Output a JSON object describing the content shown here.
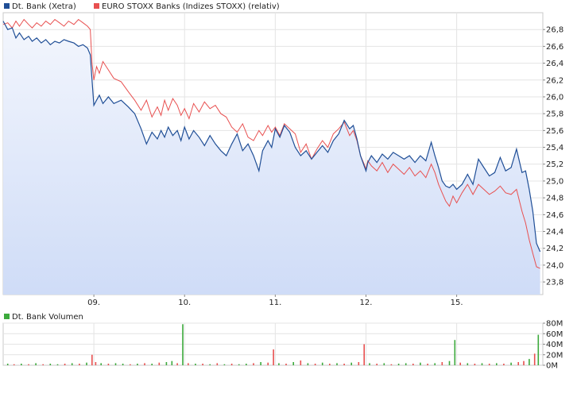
{
  "chart_data": [
    {
      "type": "line",
      "legend": [
        {
          "name": "Dt. Bank (Xetra)",
          "color": "#1f4e96"
        },
        {
          "name": "EURO STOXX Banks (Indizes STOXX) (relativ)",
          "color": "#e85050"
        }
      ],
      "x_tick_labels": [
        "09.",
        "10.",
        "11.",
        "12.",
        "15."
      ],
      "y_tick_labels": [
        "23,8",
        "24,0",
        "24,2",
        "24,4",
        "24,6",
        "24,8",
        "25,0",
        "25,2",
        "25,4",
        "25,6",
        "25,8",
        "26,0",
        "26,2",
        "26,4",
        "26,6",
        "26,8"
      ],
      "ylim": [
        23.65,
        27.0
      ],
      "xlim": [
        0,
        5.95
      ],
      "grid": true,
      "series": [
        {
          "name": "Dt. Bank (Xetra)",
          "color": "#1f4e96",
          "fill": "#dde7fa",
          "x": [
            0.0,
            0.05,
            0.1,
            0.14,
            0.18,
            0.23,
            0.28,
            0.32,
            0.37,
            0.42,
            0.47,
            0.52,
            0.57,
            0.62,
            0.67,
            0.72,
            0.78,
            0.83,
            0.88,
            0.93,
            0.96,
            0.98,
            1.0,
            1.03,
            1.06,
            1.1,
            1.16,
            1.22,
            1.3,
            1.38,
            1.45,
            1.52,
            1.58,
            1.64,
            1.7,
            1.74,
            1.78,
            1.82,
            1.87,
            1.92,
            1.96,
            2.0,
            2.05,
            2.1,
            2.16,
            2.22,
            2.28,
            2.34,
            2.4,
            2.46,
            2.52,
            2.58,
            2.64,
            2.7,
            2.76,
            2.82,
            2.86,
            2.92,
            2.96,
            3.0,
            3.05,
            3.1,
            3.16,
            3.22,
            3.28,
            3.34,
            3.4,
            3.46,
            3.52,
            3.58,
            3.64,
            3.7,
            3.76,
            3.82,
            3.86,
            3.9,
            3.94,
            3.98,
            4.0,
            4.02,
            4.06,
            4.12,
            4.18,
            4.24,
            4.3,
            4.36,
            4.42,
            4.48,
            4.54,
            4.6,
            4.66,
            4.72,
            4.76,
            4.8,
            4.84,
            4.88,
            4.92,
            4.96,
            5.0,
            5.06,
            5.12,
            5.18,
            5.24,
            5.3,
            5.36,
            5.42,
            5.48,
            5.54,
            5.6,
            5.66,
            5.72,
            5.76,
            5.8,
            5.84,
            5.88,
            5.92
          ],
          "y": [
            26.9,
            26.8,
            26.82,
            26.7,
            26.76,
            26.68,
            26.72,
            26.66,
            26.7,
            26.64,
            26.68,
            26.62,
            26.66,
            26.64,
            26.68,
            26.66,
            26.64,
            26.6,
            26.62,
            26.58,
            26.5,
            26.2,
            25.9,
            25.96,
            26.02,
            25.92,
            26.0,
            25.92,
            25.96,
            25.88,
            25.8,
            25.62,
            25.44,
            25.58,
            25.5,
            25.6,
            25.52,
            25.64,
            25.54,
            25.6,
            25.48,
            25.64,
            25.5,
            25.6,
            25.52,
            25.42,
            25.54,
            25.44,
            25.36,
            25.3,
            25.44,
            25.56,
            25.36,
            25.44,
            25.3,
            25.12,
            25.36,
            25.48,
            25.4,
            25.62,
            25.52,
            25.66,
            25.58,
            25.4,
            25.3,
            25.36,
            25.26,
            25.34,
            25.42,
            25.34,
            25.48,
            25.56,
            25.72,
            25.62,
            25.66,
            25.5,
            25.3,
            25.18,
            25.12,
            25.22,
            25.3,
            25.22,
            25.32,
            25.26,
            25.34,
            25.3,
            25.26,
            25.3,
            25.22,
            25.3,
            25.24,
            25.46,
            25.3,
            25.16,
            25.0,
            24.94,
            24.92,
            24.96,
            24.9,
            24.96,
            25.08,
            24.96,
            25.26,
            25.16,
            25.06,
            25.1,
            25.28,
            25.12,
            25.16,
            25.38,
            25.1,
            25.12,
            24.9,
            24.64,
            24.26,
            24.16
          ]
        },
        {
          "name": "EURO STOXX Banks (Indizes STOXX) (relativ)",
          "color": "#e85050",
          "x": [
            0.0,
            0.05,
            0.1,
            0.14,
            0.18,
            0.23,
            0.28,
            0.32,
            0.37,
            0.42,
            0.47,
            0.52,
            0.57,
            0.62,
            0.67,
            0.72,
            0.78,
            0.83,
            0.88,
            0.93,
            0.96,
            0.98,
            1.0,
            1.03,
            1.06,
            1.1,
            1.16,
            1.22,
            1.3,
            1.38,
            1.45,
            1.52,
            1.58,
            1.64,
            1.7,
            1.74,
            1.78,
            1.82,
            1.87,
            1.92,
            1.96,
            2.0,
            2.05,
            2.1,
            2.16,
            2.22,
            2.28,
            2.34,
            2.4,
            2.46,
            2.52,
            2.58,
            2.64,
            2.7,
            2.76,
            2.82,
            2.86,
            2.92,
            2.96,
            3.0,
            3.05,
            3.1,
            3.16,
            3.22,
            3.28,
            3.34,
            3.4,
            3.46,
            3.52,
            3.58,
            3.64,
            3.7,
            3.76,
            3.82,
            3.86,
            3.9,
            3.94,
            3.98,
            4.0,
            4.02,
            4.06,
            4.12,
            4.18,
            4.24,
            4.3,
            4.36,
            4.42,
            4.48,
            4.54,
            4.6,
            4.66,
            4.72,
            4.76,
            4.8,
            4.84,
            4.88,
            4.92,
            4.96,
            5.0,
            5.06,
            5.12,
            5.18,
            5.24,
            5.3,
            5.36,
            5.42,
            5.48,
            5.54,
            5.6,
            5.66,
            5.72,
            5.76,
            5.8,
            5.84,
            5.88,
            5.92
          ],
          "y": [
            26.86,
            26.88,
            26.82,
            26.9,
            26.84,
            26.92,
            26.86,
            26.82,
            26.88,
            26.84,
            26.9,
            26.86,
            26.92,
            26.88,
            26.84,
            26.9,
            26.86,
            26.92,
            26.88,
            26.84,
            26.8,
            26.4,
            26.2,
            26.36,
            26.28,
            26.42,
            26.32,
            26.22,
            26.18,
            26.06,
            25.96,
            25.84,
            25.96,
            25.76,
            25.88,
            25.78,
            25.96,
            25.84,
            25.98,
            25.9,
            25.78,
            25.86,
            25.74,
            25.92,
            25.82,
            25.94,
            25.86,
            25.9,
            25.8,
            25.76,
            25.64,
            25.58,
            25.68,
            25.52,
            25.48,
            25.6,
            25.54,
            25.66,
            25.58,
            25.64,
            25.54,
            25.68,
            25.62,
            25.56,
            25.34,
            25.44,
            25.26,
            25.38,
            25.48,
            25.4,
            25.56,
            25.62,
            25.7,
            25.54,
            25.6,
            25.48,
            25.3,
            25.2,
            25.14,
            25.24,
            25.18,
            25.12,
            25.22,
            25.1,
            25.2,
            25.14,
            25.08,
            25.16,
            25.06,
            25.12,
            25.04,
            25.2,
            25.1,
            24.96,
            24.86,
            24.76,
            24.7,
            24.82,
            24.74,
            24.86,
            24.96,
            24.84,
            24.96,
            24.9,
            24.84,
            24.88,
            24.94,
            24.86,
            24.84,
            24.9,
            24.64,
            24.5,
            24.3,
            24.14,
            23.98,
            23.96
          ]
        }
      ]
    },
    {
      "type": "bar",
      "legend": [
        {
          "name": "Dt. Bank Volumen",
          "color": "#3caa3c"
        }
      ],
      "y_tick_labels": [
        "0M",
        "20M",
        "40M",
        "60M",
        "80M"
      ],
      "ylim": [
        0,
        80
      ],
      "bar_colors": {
        "up": "#3caa3c",
        "down": "#e85050"
      },
      "bars": [
        {
          "x": 0.05,
          "v": 3,
          "d": 0
        },
        {
          "x": 0.12,
          "v": 2,
          "d": 1
        },
        {
          "x": 0.2,
          "v": 3,
          "d": 0
        },
        {
          "x": 0.28,
          "v": 2,
          "d": 1
        },
        {
          "x": 0.36,
          "v": 4,
          "d": 0
        },
        {
          "x": 0.44,
          "v": 2,
          "d": 1
        },
        {
          "x": 0.52,
          "v": 3,
          "d": 0
        },
        {
          "x": 0.6,
          "v": 2,
          "d": 0
        },
        {
          "x": 0.68,
          "v": 3,
          "d": 1
        },
        {
          "x": 0.76,
          "v": 4,
          "d": 0
        },
        {
          "x": 0.84,
          "v": 3,
          "d": 1
        },
        {
          "x": 0.92,
          "v": 5,
          "d": 0
        },
        {
          "x": 0.98,
          "v": 20,
          "d": 1
        },
        {
          "x": 1.02,
          "v": 6,
          "d": 1
        },
        {
          "x": 1.08,
          "v": 4,
          "d": 0
        },
        {
          "x": 1.16,
          "v": 3,
          "d": 1
        },
        {
          "x": 1.24,
          "v": 4,
          "d": 0
        },
        {
          "x": 1.32,
          "v": 3,
          "d": 0
        },
        {
          "x": 1.4,
          "v": 2,
          "d": 1
        },
        {
          "x": 1.48,
          "v": 3,
          "d": 0
        },
        {
          "x": 1.56,
          "v": 4,
          "d": 1
        },
        {
          "x": 1.64,
          "v": 3,
          "d": 0
        },
        {
          "x": 1.72,
          "v": 5,
          "d": 1
        },
        {
          "x": 1.8,
          "v": 6,
          "d": 0
        },
        {
          "x": 1.86,
          "v": 8,
          "d": 0
        },
        {
          "x": 1.92,
          "v": 4,
          "d": 1
        },
        {
          "x": 1.98,
          "v": 78,
          "d": 0
        },
        {
          "x": 2.04,
          "v": 4,
          "d": 1
        },
        {
          "x": 2.12,
          "v": 3,
          "d": 0
        },
        {
          "x": 2.2,
          "v": 3,
          "d": 1
        },
        {
          "x": 2.28,
          "v": 2,
          "d": 0
        },
        {
          "x": 2.36,
          "v": 4,
          "d": 1
        },
        {
          "x": 2.44,
          "v": 2,
          "d": 0
        },
        {
          "x": 2.52,
          "v": 3,
          "d": 1
        },
        {
          "x": 2.6,
          "v": 2,
          "d": 0
        },
        {
          "x": 2.68,
          "v": 3,
          "d": 0
        },
        {
          "x": 2.76,
          "v": 4,
          "d": 1
        },
        {
          "x": 2.84,
          "v": 6,
          "d": 0
        },
        {
          "x": 2.92,
          "v": 5,
          "d": 1
        },
        {
          "x": 2.98,
          "v": 30,
          "d": 1
        },
        {
          "x": 3.04,
          "v": 4,
          "d": 0
        },
        {
          "x": 3.12,
          "v": 3,
          "d": 1
        },
        {
          "x": 3.2,
          "v": 6,
          "d": 0
        },
        {
          "x": 3.28,
          "v": 9,
          "d": 1
        },
        {
          "x": 3.36,
          "v": 4,
          "d": 0
        },
        {
          "x": 3.44,
          "v": 3,
          "d": 1
        },
        {
          "x": 3.52,
          "v": 5,
          "d": 0
        },
        {
          "x": 3.6,
          "v": 3,
          "d": 1
        },
        {
          "x": 3.68,
          "v": 4,
          "d": 0
        },
        {
          "x": 3.76,
          "v": 3,
          "d": 1
        },
        {
          "x": 3.84,
          "v": 5,
          "d": 0
        },
        {
          "x": 3.92,
          "v": 6,
          "d": 1
        },
        {
          "x": 3.98,
          "v": 40,
          "d": 1
        },
        {
          "x": 4.04,
          "v": 4,
          "d": 0
        },
        {
          "x": 4.12,
          "v": 3,
          "d": 1
        },
        {
          "x": 4.2,
          "v": 4,
          "d": 0
        },
        {
          "x": 4.28,
          "v": 2,
          "d": 1
        },
        {
          "x": 4.36,
          "v": 3,
          "d": 0
        },
        {
          "x": 4.44,
          "v": 4,
          "d": 0
        },
        {
          "x": 4.52,
          "v": 3,
          "d": 1
        },
        {
          "x": 4.6,
          "v": 5,
          "d": 0
        },
        {
          "x": 4.68,
          "v": 3,
          "d": 1
        },
        {
          "x": 4.76,
          "v": 4,
          "d": 0
        },
        {
          "x": 4.84,
          "v": 6,
          "d": 1
        },
        {
          "x": 4.92,
          "v": 8,
          "d": 0
        },
        {
          "x": 4.98,
          "v": 48,
          "d": 0
        },
        {
          "x": 5.04,
          "v": 5,
          "d": 1
        },
        {
          "x": 5.12,
          "v": 4,
          "d": 0
        },
        {
          "x": 5.2,
          "v": 3,
          "d": 1
        },
        {
          "x": 5.28,
          "v": 4,
          "d": 0
        },
        {
          "x": 5.36,
          "v": 3,
          "d": 1
        },
        {
          "x": 5.44,
          "v": 4,
          "d": 0
        },
        {
          "x": 5.52,
          "v": 3,
          "d": 1
        },
        {
          "x": 5.6,
          "v": 5,
          "d": 0
        },
        {
          "x": 5.68,
          "v": 6,
          "d": 1
        },
        {
          "x": 5.74,
          "v": 8,
          "d": 1
        },
        {
          "x": 5.8,
          "v": 12,
          "d": 0
        },
        {
          "x": 5.86,
          "v": 22,
          "d": 1
        },
        {
          "x": 5.9,
          "v": 58,
          "d": 0
        }
      ]
    }
  ]
}
